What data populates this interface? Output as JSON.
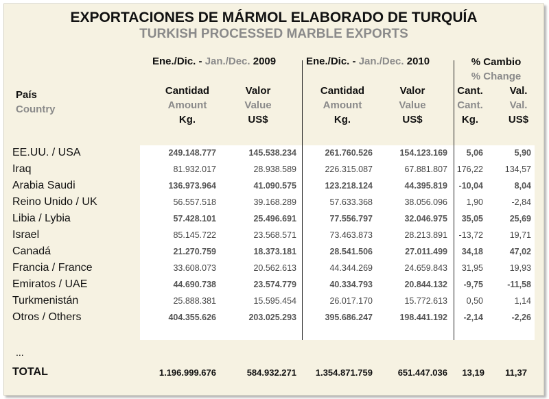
{
  "title": {
    "es": "EXPORTACIONES DE MÁRMOL ELABORADO DE TURQUÍA",
    "en": "TURKISH PROCESSED MARBLE EXPORTS"
  },
  "periods": {
    "p2009": {
      "es": "Ene./Dic. -",
      "en": "Jan./Dec.",
      "year": "2009"
    },
    "p2010": {
      "es": "Ene./Dic. -",
      "en": "Jan./Dec.",
      "year": "2010"
    },
    "change": {
      "es": "% Cambio",
      "en": "% Change"
    }
  },
  "columns": {
    "country": {
      "es": "País",
      "en": "Country"
    },
    "amount": {
      "es": "Cantidad",
      "en": "Amount",
      "unit": "Kg."
    },
    "value": {
      "es": "Valor",
      "en": "Value",
      "unit": "US$"
    },
    "cant": {
      "es": "Cant.",
      "en": "Cant.",
      "unit": "Kg."
    },
    "val": {
      "es": "Val.",
      "en": "Val.",
      "unit": "US$"
    }
  },
  "rows": [
    {
      "country": "EE.UU. / USA",
      "a2009": "249.148.777",
      "v2009": "145.538.234",
      "a2010": "261.760.526",
      "v2010": "154.123.169",
      "cant": "5,06",
      "val": "5,90"
    },
    {
      "country": "Iraq",
      "a2009": "81.932.017",
      "v2009": "28.938.589",
      "a2010": "226.315.087",
      "v2010": "67.881.807",
      "cant": "176,22",
      "val": "134,57"
    },
    {
      "country": "Arabia Saudi",
      "a2009": "136.973.964",
      "v2009": "41.090.575",
      "a2010": "123.218.124",
      "v2010": "44.395.819",
      "cant": "-10,04",
      "val": "8,04"
    },
    {
      "country": "Reino Unido / UK",
      "a2009": "56.557.518",
      "v2009": "39.168.289",
      "a2010": "57.633.368",
      "v2010": "38.056.096",
      "cant": "1,90",
      "val": "-2,84"
    },
    {
      "country": "Libia / Lybia",
      "a2009": "57.428.101",
      "v2009": "25.496.691",
      "a2010": "77.556.797",
      "v2010": "32.046.975",
      "cant": "35,05",
      "val": "25,69"
    },
    {
      "country": "Israel",
      "a2009": "85.145.722",
      "v2009": "23.568.571",
      "a2010": "73.463.873",
      "v2010": "28.213.891",
      "cant": "-13,72",
      "val": "19,71"
    },
    {
      "country": "Canadá",
      "a2009": "21.270.759",
      "v2009": "18.373.181",
      "a2010": "28.541.506",
      "v2010": "27.011.499",
      "cant": "34,18",
      "val": "47,02"
    },
    {
      "country": "Francia / France",
      "a2009": "33.608.073",
      "v2009": "20.562.613",
      "a2010": "44.344.269",
      "v2010": "24.659.843",
      "cant": "31,95",
      "val": "19,93"
    },
    {
      "country": "Emiratos / UAE",
      "a2009": "44.690.738",
      "v2009": "23.574.779",
      "a2010": "40.334.793",
      "v2010": "20.844.132",
      "cant": "-9,75",
      "val": "-11,58"
    },
    {
      "country": "Turkmenistán",
      "a2009": "25.888.381",
      "v2009": "15.595.454",
      "a2010": "26.017.170",
      "v2010": "15.772.613",
      "cant": "0,50",
      "val": "1,14"
    },
    {
      "country": "Otros / Others",
      "a2009": "404.355.626",
      "v2009": "203.025.293",
      "a2010": "395.686.247",
      "v2010": "198.441.192",
      "cant": "-2,14",
      "val": "-2,26"
    }
  ],
  "ellipsis": "...",
  "total": {
    "label": "TOTAL",
    "a2009": "1.196.999.676",
    "v2009": "584.932.271",
    "a2010": "1.354.871.759",
    "v2010": "651.447.036",
    "cant": "13,19",
    "val": "11,37"
  }
}
